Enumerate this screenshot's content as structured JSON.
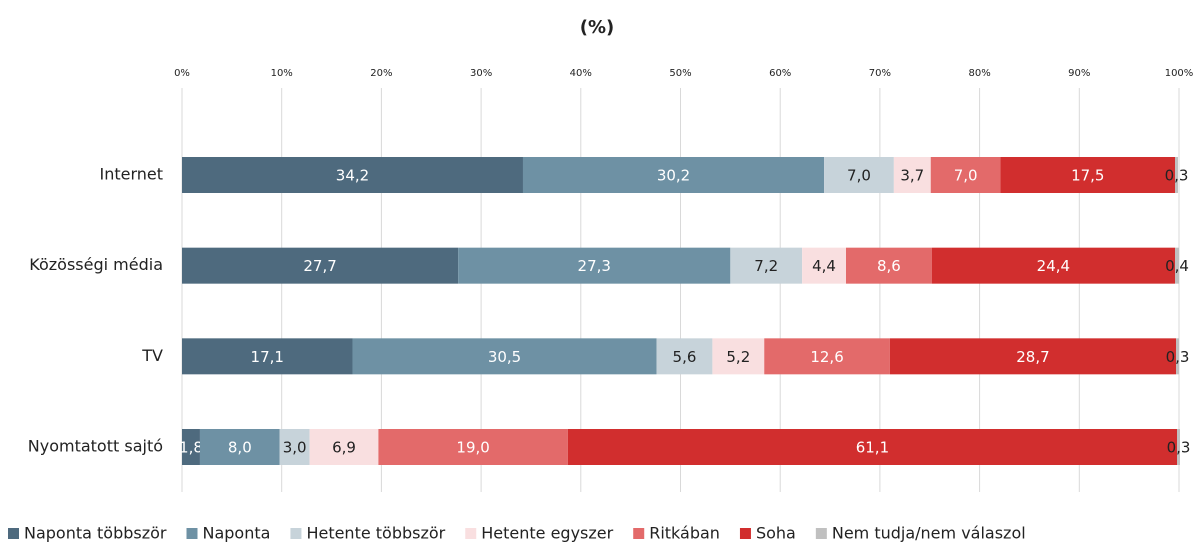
{
  "chart_data": {
    "type": "stacked_barh",
    "title": "(%)",
    "categories": [
      "Internet",
      "Közösségi média",
      "TV",
      "Nyomtatott sajtó"
    ],
    "xlim": [
      0,
      100
    ],
    "xticks": [
      {
        "value": 0,
        "label": "0%"
      },
      {
        "value": 10,
        "label": "10%"
      },
      {
        "value": 20,
        "label": "20%"
      },
      {
        "value": 30,
        "label": "30%"
      },
      {
        "value": 40,
        "label": "40%"
      },
      {
        "value": 50,
        "label": "50%"
      },
      {
        "value": 60,
        "label": "60%"
      },
      {
        "value": 70,
        "label": "70%"
      },
      {
        "value": 80,
        "label": "80%"
      },
      {
        "value": 90,
        "label": "90%"
      },
      {
        "value": 100,
        "label": "100%"
      }
    ],
    "grid": true,
    "legend": "bottom",
    "series": [
      {
        "name": "Naponta többször",
        "color": "#4e6a7e",
        "values": [
          34.2,
          27.7,
          17.1,
          1.8
        ],
        "value_labels": [
          "34,2",
          "27,7",
          "17,1",
          "1,8"
        ]
      },
      {
        "name": "Naponta",
        "color": "#6e91a4",
        "values": [
          30.2,
          27.3,
          30.5,
          8.0
        ],
        "value_labels": [
          "30,2",
          "27,3",
          "30,5",
          "8,0"
        ]
      },
      {
        "name": "Hetente többször",
        "color": "#c7d3da",
        "values": [
          7.0,
          7.2,
          5.6,
          3.0
        ],
        "value_labels": [
          "7,0",
          "7,2",
          "5,6",
          "3,0"
        ]
      },
      {
        "name": "Hetente egyszer",
        "color": "#f9dfe0",
        "values": [
          3.7,
          4.4,
          5.2,
          6.9
        ],
        "value_labels": [
          "3,7",
          "4,4",
          "5,2",
          "6,9"
        ]
      },
      {
        "name": "Ritkában",
        "color": "#e36a6a",
        "values": [
          7.0,
          8.6,
          12.6,
          19.0
        ],
        "value_labels": [
          "7,0",
          "8,6",
          "12,6",
          "19,0"
        ]
      },
      {
        "name": "Soha",
        "color": "#d12e2e",
        "values": [
          17.5,
          24.4,
          28.7,
          61.1
        ],
        "value_labels": [
          "17,5",
          "24,4",
          "28,7",
          "61,1"
        ]
      },
      {
        "name": "Nem tudja/nem válaszol",
        "color": "#c0c0c0",
        "values": [
          0.3,
          0.4,
          0.3,
          0.3
        ],
        "value_labels": [
          "0,3",
          "0,4",
          "0,3",
          "0,3"
        ]
      }
    ]
  }
}
